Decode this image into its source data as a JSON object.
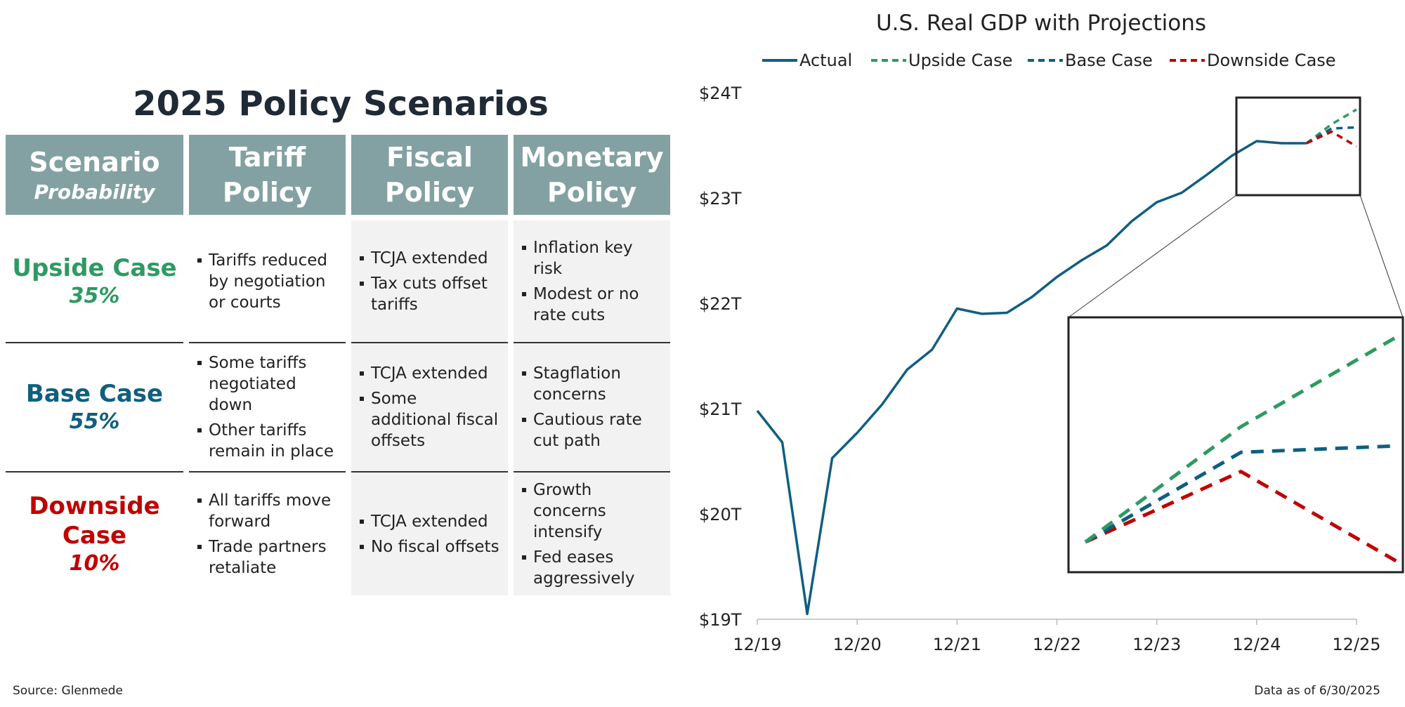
{
  "table": {
    "title": "2025 Policy Scenarios",
    "headers": {
      "scenario": "Scenario",
      "probability": "Probability",
      "tariff": [
        "Tariff",
        "Policy"
      ],
      "fiscal": [
        "Fiscal",
        "Policy"
      ],
      "monetary": [
        "Monetary",
        "Policy"
      ]
    },
    "rows": [
      {
        "name_lines": [
          "Upside Case"
        ],
        "prob": "35%",
        "color": "#2e9a63",
        "tariff": [
          "Tariffs reduced by negotiation or courts"
        ],
        "fiscal": [
          "TCJA extended",
          "Tax cuts offset tariffs"
        ],
        "monetary": [
          "Inflation key risk",
          "Modest or no rate cuts"
        ]
      },
      {
        "name_lines": [
          "Base Case"
        ],
        "prob": "55%",
        "color": "#0f5f80",
        "tariff": [
          "Some tariffs negotiated down",
          "Other tariffs remain in place"
        ],
        "fiscal": [
          "TCJA extended",
          "Some additional fiscal offsets"
        ],
        "monetary": [
          "Stagflation concerns",
          "Cautious rate cut path"
        ]
      },
      {
        "name_lines": [
          "Downside",
          "Case"
        ],
        "prob": "10%",
        "color": "#c00000",
        "tariff": [
          "All tariffs move forward",
          "Trade partners retaliate"
        ],
        "fiscal": [
          "TCJA extended",
          "No fiscal offsets"
        ],
        "monetary": [
          "Growth concerns intensify",
          "Fed eases aggressively"
        ]
      }
    ]
  },
  "footer": {
    "source": "Source: Glenmede",
    "as_of": "Data as of 6/30/2025"
  },
  "chart_data": {
    "type": "line",
    "title": "U.S. Real GDP with Projections",
    "xlabel": "",
    "ylabel": "",
    "x_tick_labels": [
      "12/19",
      "12/20",
      "12/21",
      "12/22",
      "12/23",
      "12/24",
      "12/25"
    ],
    "y_tick_labels": [
      "$19T",
      "$20T",
      "$21T",
      "$22T",
      "$23T",
      "$24T"
    ],
    "ylim": [
      19,
      24
    ],
    "xlim": [
      2019.75,
      2025.75
    ],
    "legend_position": "top",
    "series": [
      {
        "name": "Actual",
        "color": "#0f5f80",
        "style": "solid",
        "x": [
          2019.75,
          2020.0,
          2020.25,
          2020.5,
          2020.75,
          2021.0,
          2021.25,
          2021.5,
          2021.75,
          2022.0,
          2022.25,
          2022.5,
          2022.75,
          2023.0,
          2023.25,
          2023.5,
          2023.75,
          2024.0,
          2024.25,
          2024.5,
          2024.75,
          2025.0,
          2025.25
        ],
        "y": [
          20.98,
          20.68,
          19.05,
          20.53,
          20.77,
          21.04,
          21.37,
          21.56,
          21.95,
          21.9,
          21.91,
          22.06,
          22.25,
          22.41,
          22.55,
          22.78,
          22.96,
          23.05,
          23.22,
          23.4,
          23.54,
          23.52,
          23.52
        ]
      },
      {
        "name": "Upside Case",
        "color": "#2e9a63",
        "style": "dashed",
        "x": [
          2025.25,
          2025.5,
          2025.75
        ],
        "y": [
          23.52,
          23.7,
          23.84
        ]
      },
      {
        "name": "Base Case",
        "color": "#0f5f80",
        "style": "dashed",
        "x": [
          2025.25,
          2025.5,
          2025.75
        ],
        "y": [
          23.52,
          23.66,
          23.67
        ]
      },
      {
        "name": "Downside Case",
        "color": "#c00000",
        "style": "dashed",
        "x": [
          2025.25,
          2025.5,
          2025.75
        ],
        "y": [
          23.52,
          23.63,
          23.49
        ]
      }
    ],
    "inset_range": {
      "x": [
        2025.0,
        2025.75
      ],
      "y": [
        23.2,
        23.95
      ]
    }
  }
}
